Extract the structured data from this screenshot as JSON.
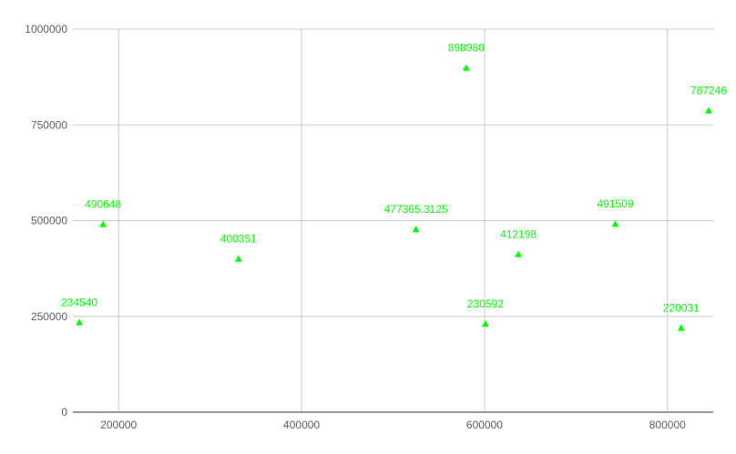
{
  "chart_data": {
    "type": "scatter",
    "title": "",
    "xlabel": "",
    "ylabel": "",
    "xlim": [
      150000,
      850000
    ],
    "ylim": [
      0,
      1000000
    ],
    "x_ticks": [
      200000,
      400000,
      600000,
      800000
    ],
    "x_tick_labels": [
      "200000",
      "400000",
      "600000",
      "800000"
    ],
    "y_ticks": [
      0,
      250000,
      500000,
      750000,
      1000000
    ],
    "y_tick_labels": [
      "0",
      "250000",
      "500000",
      "750000",
      "1000000"
    ],
    "grid": true,
    "marker": "triangle",
    "color": "#00ff00",
    "points": [
      {
        "x": 157000,
        "y": 234540,
        "label": "234540"
      },
      {
        "x": 183000,
        "y": 490648,
        "label": "490648"
      },
      {
        "x": 331000,
        "y": 400351,
        "label": "400351"
      },
      {
        "x": 525000,
        "y": 477365.3125,
        "label": "477365.3125"
      },
      {
        "x": 580000,
        "y": 898980,
        "label": "898980"
      },
      {
        "x": 601000,
        "y": 230592,
        "label": "230592"
      },
      {
        "x": 637000,
        "y": 412198,
        "label": "412198"
      },
      {
        "x": 743000,
        "y": 491509,
        "label": "491509"
      },
      {
        "x": 815000,
        "y": 220031,
        "label": "220031"
      },
      {
        "x": 845000,
        "y": 787246,
        "label": "787246"
      }
    ]
  }
}
